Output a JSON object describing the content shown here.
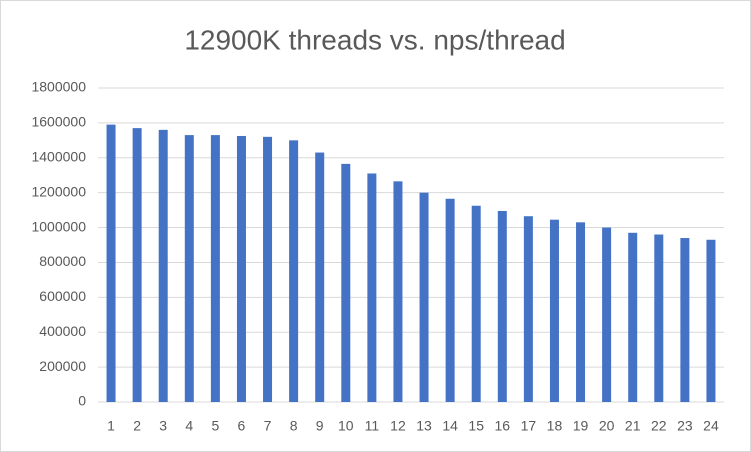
{
  "chart_data": {
    "type": "bar",
    "title": "12900K threads vs. nps/thread",
    "categories": [
      "1",
      "2",
      "3",
      "4",
      "5",
      "6",
      "7",
      "8",
      "9",
      "10",
      "11",
      "12",
      "13",
      "14",
      "15",
      "16",
      "17",
      "18",
      "19",
      "20",
      "21",
      "22",
      "23",
      "24"
    ],
    "values": [
      1590000,
      1570000,
      1560000,
      1530000,
      1530000,
      1525000,
      1520000,
      1500000,
      1430000,
      1365000,
      1310000,
      1265000,
      1200000,
      1165000,
      1125000,
      1095000,
      1065000,
      1045000,
      1030000,
      1000000,
      970000,
      960000,
      940000,
      930000
    ],
    "color": "#4472c4",
    "ylim": [
      0,
      1800000
    ],
    "yticks": [
      0,
      200000,
      400000,
      600000,
      800000,
      1000000,
      1200000,
      1400000,
      1600000,
      1800000
    ],
    "grid": true
  }
}
